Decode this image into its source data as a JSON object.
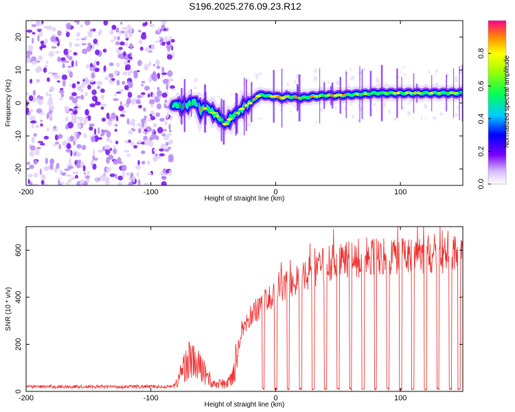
{
  "title": "S196.2025.276.09.23.R12",
  "chart_data": [
    {
      "type": "heatmap",
      "name": "spectrogram",
      "xlabel": "Height of straight line (km)",
      "ylabel": "Frequency (Hz)",
      "xlim": [
        -200,
        150
      ],
      "ylim": [
        -25,
        25
      ],
      "xticks": [
        "-200",
        "-100",
        "0",
        "100"
      ],
      "yticks": [
        "-20",
        "-10",
        "0",
        "10",
        "20"
      ],
      "noise_region_x": [
        -200,
        -82
      ],
      "ridge": {
        "x": [
          -82,
          -75,
          -70,
          -65,
          -60,
          -55,
          -50,
          -45,
          -40,
          -35,
          -30,
          -25,
          -20,
          -15,
          -10,
          -5,
          0,
          5,
          10,
          20,
          30,
          40,
          50,
          60,
          70,
          80,
          90,
          100,
          110,
          120,
          130,
          140,
          150
        ],
        "freq": [
          -0.5,
          -1,
          -0.5,
          0.5,
          -2,
          -1.5,
          -3,
          -4.5,
          -6.5,
          -4,
          -3,
          -1,
          0,
          2,
          2.5,
          2,
          2,
          1.5,
          2,
          1.5,
          2,
          2.3,
          2.3,
          2.5,
          2.7,
          3,
          3,
          3,
          3,
          3,
          3,
          3,
          3
        ]
      },
      "colorbar": {
        "label": "Normalized spectral amplitude",
        "ticks": [
          "0.0",
          "0.2",
          "0.4",
          "0.6",
          "0.8"
        ],
        "range": [
          0,
          1
        ]
      }
    },
    {
      "type": "line",
      "name": "snr",
      "xlabel": "Height of straight line (km)",
      "ylabel": "SNR (10 * v/v)",
      "xlim": [
        -200,
        150
      ],
      "ylim": [
        0,
        700
      ],
      "xticks": [
        "-200",
        "-100",
        "0",
        "100"
      ],
      "yticks": [
        "0",
        "200",
        "400",
        "600"
      ],
      "color": "#ee3333",
      "series": [
        {
          "name": "SNR",
          "x": [
            -200,
            -85,
            -80,
            -75,
            -70,
            -65,
            -60,
            -55,
            -50,
            -45,
            -40,
            -35,
            -30,
            -25,
            -20,
            -15,
            -10,
            -5,
            0,
            5,
            10,
            20,
            30,
            40,
            50,
            60,
            70,
            80,
            90,
            100,
            110,
            120,
            130,
            140,
            150
          ],
          "y": [
            20,
            20,
            30,
            100,
            150,
            130,
            110,
            80,
            30,
            40,
            30,
            70,
            200,
            280,
            320,
            340,
            380,
            390,
            420,
            450,
            450,
            480,
            520,
            540,
            550,
            560,
            570,
            570,
            580,
            580,
            580,
            580,
            580,
            580,
            560
          ]
        }
      ],
      "dropouts_x": [
        -10,
        0,
        10,
        20,
        30,
        40,
        50,
        60,
        70,
        80,
        90,
        100,
        110,
        120,
        130,
        140,
        147
      ]
    }
  ]
}
